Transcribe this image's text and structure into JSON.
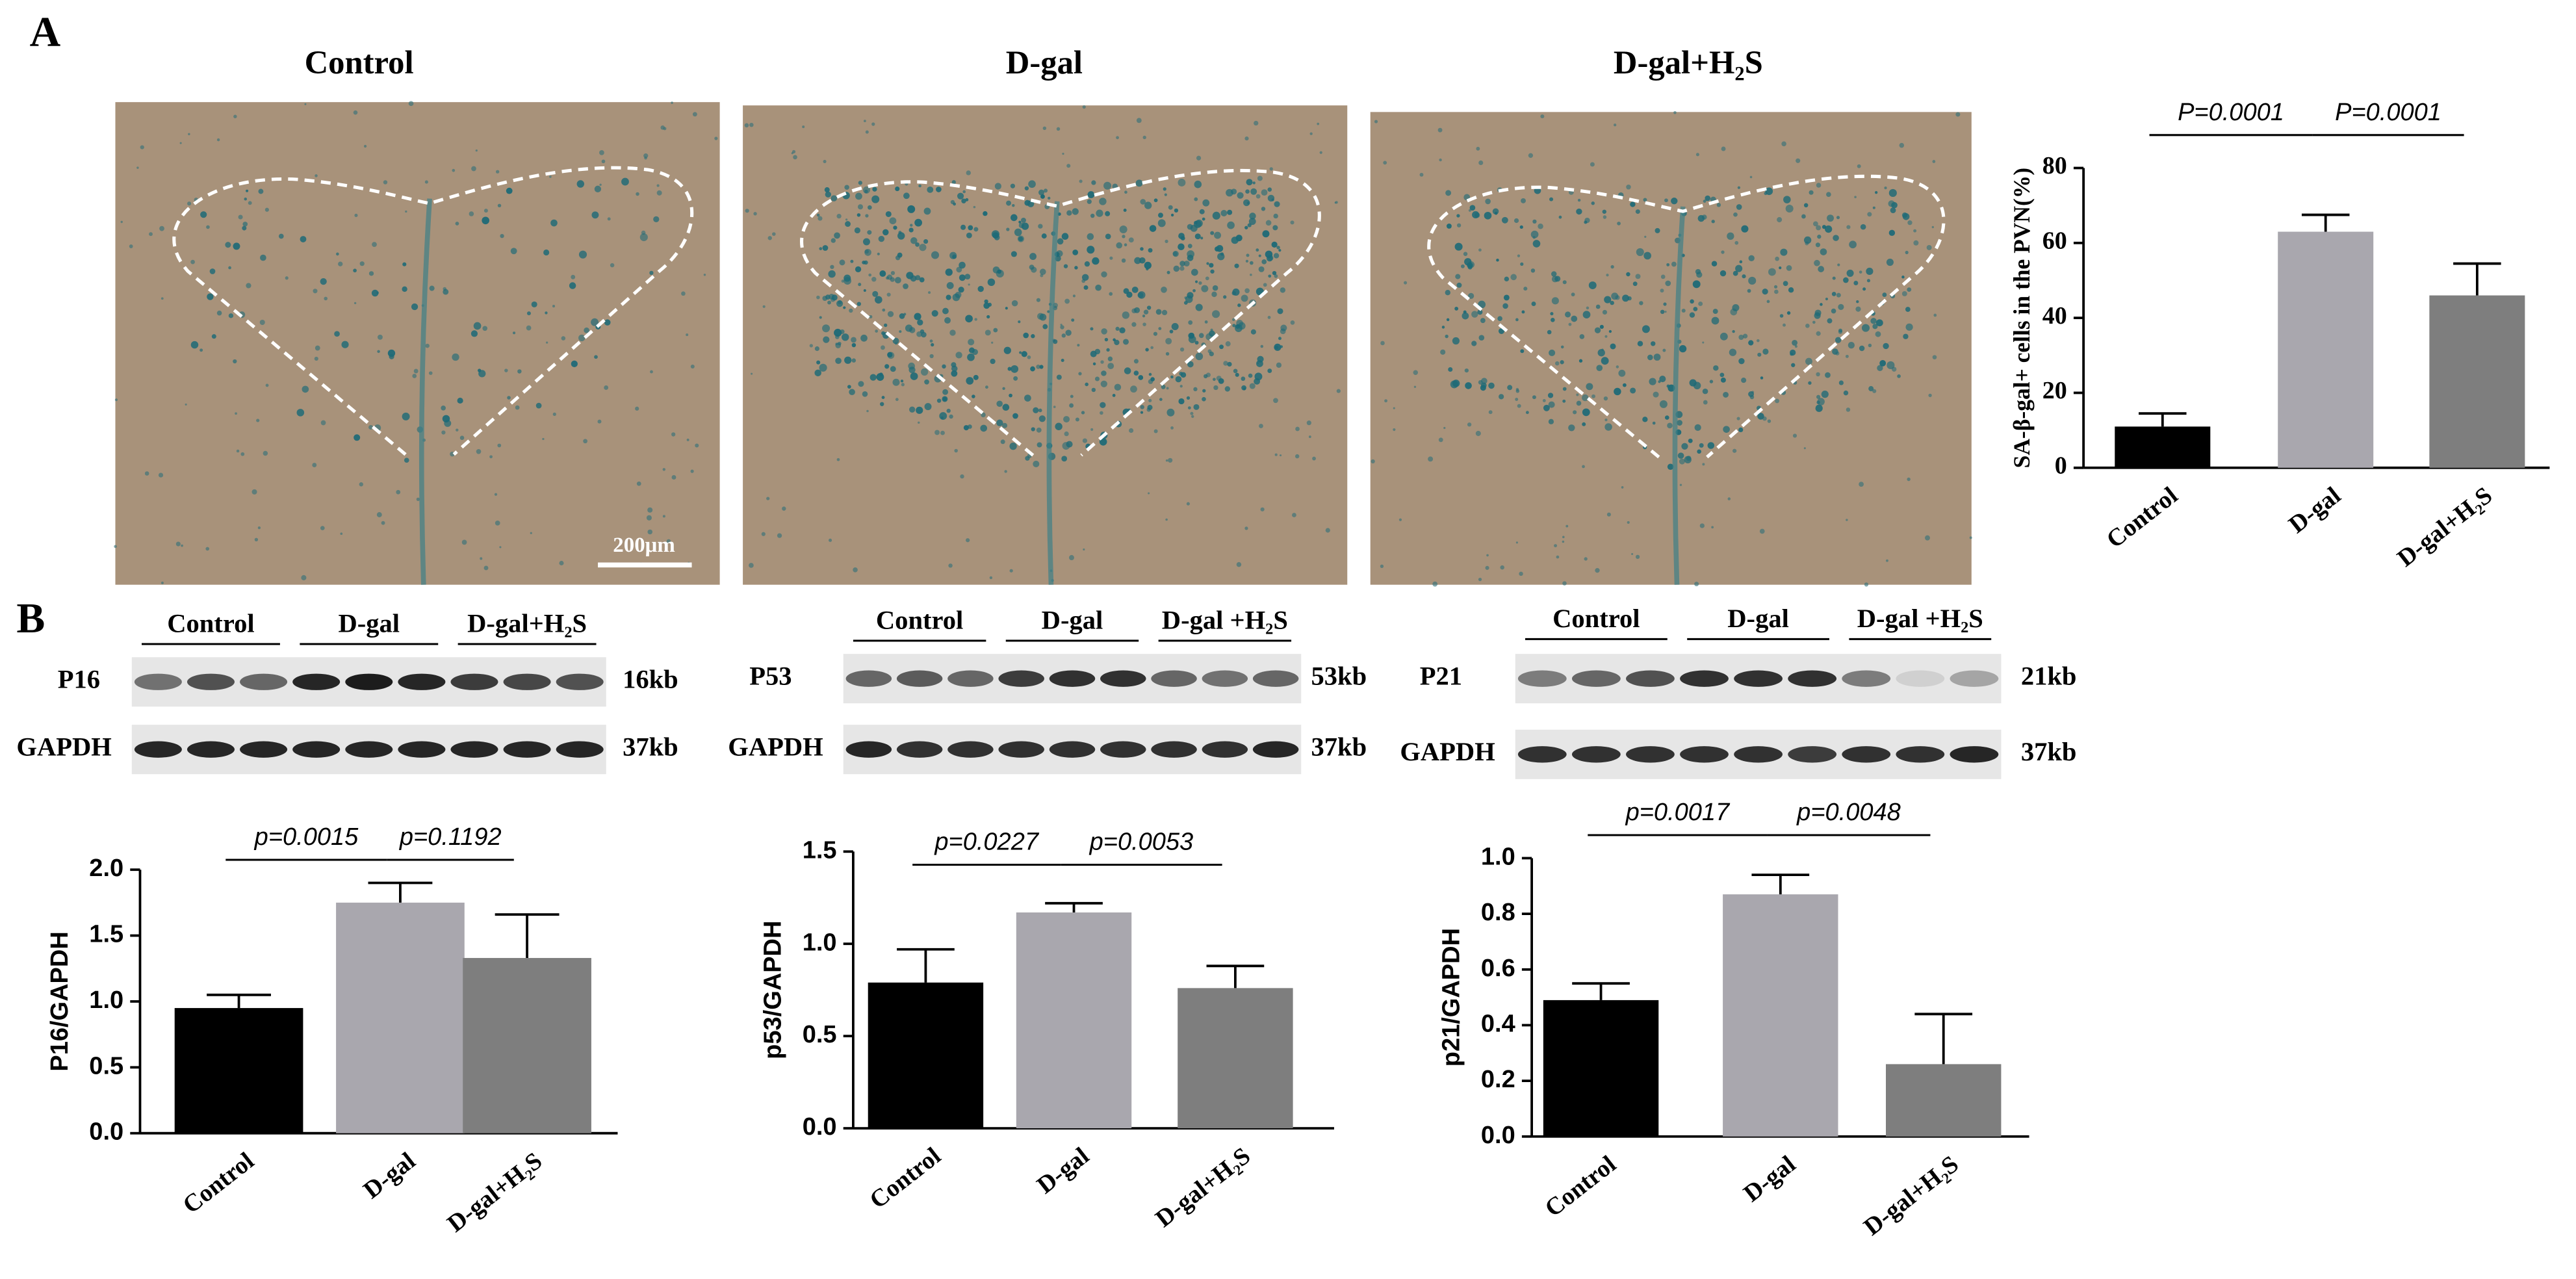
{
  "figure": {
    "panel_labels": [
      "A",
      "B"
    ],
    "images": {
      "titles": [
        "Control",
        "D-gal",
        "D-gal+H₂S"
      ],
      "scale_bar": "200μm"
    },
    "blots": [
      {
        "groups": [
          "Control",
          "D-gal",
          "D-gal+H₂S"
        ],
        "rows": [
          {
            "label": "P16",
            "size": "16kb"
          },
          {
            "label": "GAPDH",
            "size": "37kb"
          }
        ]
      },
      {
        "groups": [
          "Control",
          "D-gal",
          "D-gal +H₂S"
        ],
        "rows": [
          {
            "label": "P53",
            "size": "53kb"
          },
          {
            "label": "GAPDH",
            "size": "37kb"
          }
        ]
      },
      {
        "groups": [
          "Control",
          "D-gal",
          "D-gal +H₂S"
        ],
        "rows": [
          {
            "label": "P21",
            "size": "21kb"
          },
          {
            "label": "GAPDH",
            "size": "37kb"
          }
        ]
      }
    ]
  },
  "chart_data": [
    {
      "type": "bar",
      "y_label": "SA-β-gal+ cells in the PVN(%)",
      "categories": [
        "Control",
        "D-gal",
        "D-gal+H₂S"
      ],
      "values": [
        11,
        63,
        46
      ],
      "errors": [
        3.5,
        4.5,
        8.5
      ],
      "colors": [
        "#000000",
        "#a9a7ae",
        "#7e7e7e"
      ],
      "ylim": [
        0,
        80
      ],
      "yticks": [
        0,
        20,
        40,
        60,
        80
      ],
      "annotations": [
        "P=0.0001",
        "P=0.0001"
      ]
    },
    {
      "type": "bar",
      "y_label": "P16/GAPDH",
      "categories": [
        "Control",
        "D-gal",
        "D-gal+H₂S"
      ],
      "values": [
        0.95,
        1.75,
        1.33
      ],
      "errors": [
        0.1,
        0.15,
        0.33
      ],
      "colors": [
        "#000000",
        "#a9a7ae",
        "#7e7e7e"
      ],
      "ylim": [
        0,
        2
      ],
      "yticks": [
        {
          "value": 0,
          "label": "0.0"
        },
        0.5,
        {
          "value": 1,
          "label": "1.0"
        },
        1.5,
        {
          "value": 2,
          "label": "2.0"
        }
      ],
      "annotations": [
        "p=0.0015",
        "p=0.1192"
      ]
    },
    {
      "type": "bar",
      "y_label": "p53/GAPDH",
      "categories": [
        "Control",
        "D-gal",
        "D-gal+H₂S"
      ],
      "values": [
        0.79,
        1.17,
        0.76
      ],
      "errors": [
        0.18,
        0.05,
        0.12
      ],
      "colors": [
        "#000000",
        "#a9a7ae",
        "#7e7e7e"
      ],
      "ylim": [
        0,
        1.5
      ],
      "yticks": [
        {
          "value": 0,
          "label": "0.0"
        },
        0.5,
        {
          "value": 1,
          "label": "1.0"
        },
        1.5
      ],
      "annotations": [
        "p=0.0227",
        "p=0.0053"
      ]
    },
    {
      "type": "bar",
      "y_label": "p21/GAPDH",
      "categories": [
        "Control",
        "D-gal",
        "D-gal+H₂S"
      ],
      "values": [
        0.49,
        0.87,
        0.26
      ],
      "errors": [
        0.06,
        0.07,
        0.18
      ],
      "colors": [
        "#000000",
        "#a9a7ae",
        "#7e7e7e"
      ],
      "ylim": [
        0,
        1
      ],
      "yticks": [
        {
          "value": 0,
          "label": "0.0"
        },
        0.2,
        0.4,
        0.6,
        0.8,
        {
          "value": 1,
          "label": "1.0"
        }
      ],
      "annotations": [
        "p=0.0017",
        "p=0.0048"
      ]
    }
  ]
}
